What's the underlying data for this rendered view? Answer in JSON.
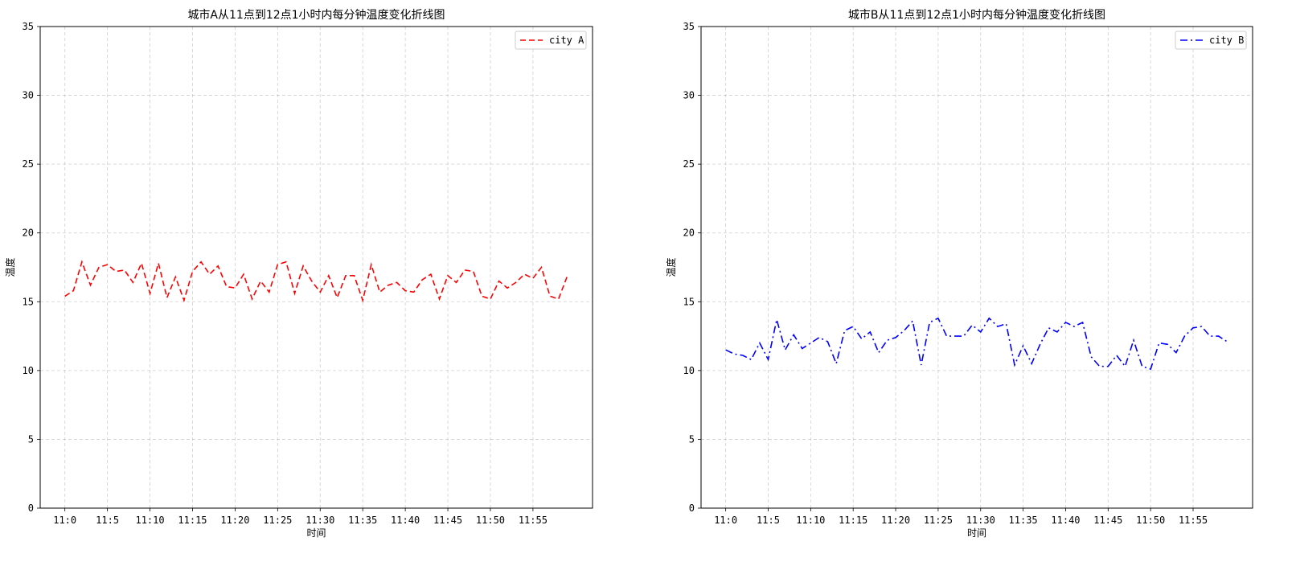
{
  "chart_data": [
    {
      "type": "line",
      "title": "城市A从11点到12点1小时内每分钟温度变化折线图",
      "xlabel": "时间",
      "ylabel": "温度",
      "ylim": [
        0,
        35
      ],
      "yticks": [
        0,
        5,
        10,
        15,
        20,
        25,
        30,
        35
      ],
      "xtick_labels": [
        "11:0",
        "11:5",
        "11:10",
        "11:15",
        "11:20",
        "11:25",
        "11:30",
        "11:35",
        "11:40",
        "11:45",
        "11:50",
        "11:55"
      ],
      "x": [
        0,
        1,
        2,
        3,
        4,
        5,
        6,
        7,
        8,
        9,
        10,
        11,
        12,
        13,
        14,
        15,
        16,
        17,
        18,
        19,
        20,
        21,
        22,
        23,
        24,
        25,
        26,
        27,
        28,
        29,
        30,
        31,
        32,
        33,
        34,
        35,
        36,
        37,
        38,
        39,
        40,
        41,
        42,
        43,
        44,
        45,
        46,
        47,
        48,
        49,
        50,
        51,
        52,
        53,
        54,
        55,
        56,
        57,
        58,
        59
      ],
      "grid": true,
      "legend_position": "top-right",
      "series": [
        {
          "name": "city A",
          "color": "#ff0000",
          "linestyle": "dashed",
          "values": [
            15.4,
            15.8,
            17.9,
            16.2,
            17.5,
            17.7,
            17.2,
            17.3,
            16.4,
            17.8,
            15.6,
            17.8,
            15.3,
            16.8,
            15.1,
            17.2,
            17.9,
            17.0,
            17.6,
            16.1,
            16.0,
            17.0,
            15.2,
            16.5,
            15.7,
            17.7,
            17.9,
            15.6,
            17.6,
            16.5,
            15.7,
            16.9,
            15.3,
            16.9,
            16.9,
            15.1,
            17.7,
            15.7,
            16.2,
            16.4,
            15.8,
            15.7,
            16.6,
            17.0,
            15.2,
            16.9,
            16.4,
            17.3,
            17.2,
            15.4,
            15.2,
            16.5,
            16.0,
            16.4,
            17.0,
            16.7,
            17.5,
            15.4,
            15.2,
            16.8
          ]
        }
      ]
    },
    {
      "type": "line",
      "title": "城市B从11点到12点1小时内每分钟温度变化折线图",
      "xlabel": "时间",
      "ylabel": "温度",
      "ylim": [
        0,
        35
      ],
      "yticks": [
        0,
        5,
        10,
        15,
        20,
        25,
        30,
        35
      ],
      "xtick_labels": [
        "11:0",
        "11:5",
        "11:10",
        "11:15",
        "11:20",
        "11:25",
        "11:30",
        "11:35",
        "11:40",
        "11:45",
        "11:50",
        "11:55"
      ],
      "x": [
        0,
        1,
        2,
        3,
        4,
        5,
        6,
        7,
        8,
        9,
        10,
        11,
        12,
        13,
        14,
        15,
        16,
        17,
        18,
        19,
        20,
        21,
        22,
        23,
        24,
        25,
        26,
        27,
        28,
        29,
        30,
        31,
        32,
        33,
        34,
        35,
        36,
        37,
        38,
        39,
        40,
        41,
        42,
        43,
        44,
        45,
        46,
        47,
        48,
        49,
        50,
        51,
        52,
        53,
        54,
        55,
        56,
        57,
        58,
        59
      ],
      "grid": true,
      "legend_position": "top-right",
      "series": [
        {
          "name": "city B",
          "color": "#0000ff",
          "linestyle": "dashdot",
          "values": [
            11.5,
            11.2,
            11.1,
            10.8,
            12.0,
            10.8,
            13.7,
            11.5,
            12.6,
            11.6,
            12.0,
            12.4,
            12.1,
            10.5,
            12.9,
            13.2,
            12.3,
            12.8,
            11.3,
            12.2,
            12.4,
            12.9,
            13.6,
            10.4,
            13.5,
            13.8,
            12.5,
            12.5,
            12.5,
            13.3,
            12.8,
            13.8,
            13.2,
            13.4,
            10.4,
            11.8,
            10.5,
            11.9,
            13.1,
            12.8,
            13.5,
            13.2,
            13.5,
            11.0,
            10.3,
            10.3,
            11.1,
            10.3,
            12.2,
            10.3,
            10.1,
            12.0,
            11.9,
            11.3,
            12.5,
            13.1,
            13.2,
            12.5,
            12.5,
            12.1
          ]
        }
      ]
    }
  ]
}
